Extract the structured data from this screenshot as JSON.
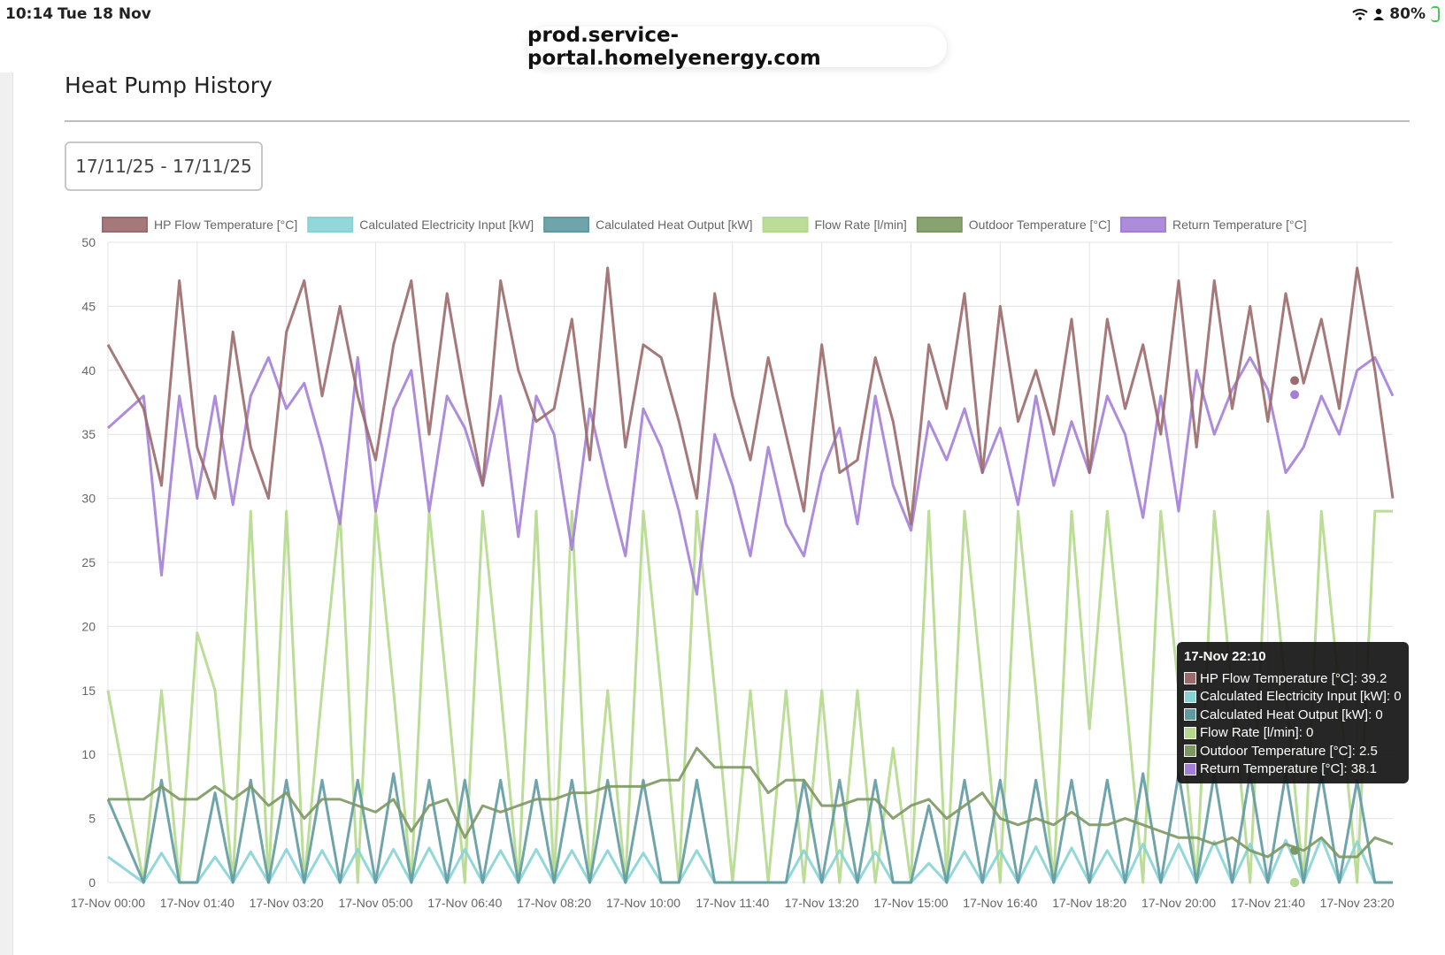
{
  "status_bar": {
    "time": "10:14",
    "date": "Tue 18 Nov",
    "battery": "80%"
  },
  "url": "prod.service-portal.homelyenergy.com",
  "page": {
    "title": "Heat Pump History",
    "date_range": "17/11/25 - 17/11/25"
  },
  "chart_data": {
    "type": "line",
    "title": "",
    "xlabel": "",
    "ylabel": "",
    "ylim": [
      0,
      50
    ],
    "yticks": [
      0,
      5,
      10,
      15,
      20,
      25,
      30,
      35,
      40,
      45,
      50
    ],
    "grid": true,
    "legend_position": "top",
    "x_tick_labels": [
      "17-Nov 00:00",
      "17-Nov 01:40",
      "17-Nov 03:20",
      "17-Nov 05:00",
      "17-Nov 06:40",
      "17-Nov 08:20",
      "17-Nov 10:00",
      "17-Nov 11:40",
      "17-Nov 13:20",
      "17-Nov 15:00",
      "17-Nov 16:40",
      "17-Nov 18:20",
      "17-Nov 20:00",
      "17-Nov 21:40",
      "17-Nov 23:20"
    ],
    "x_minutes": [
      0,
      40,
      60,
      80,
      100,
      120,
      140,
      160,
      180,
      200,
      220,
      240,
      260,
      280,
      300,
      320,
      340,
      360,
      380,
      400,
      420,
      440,
      460,
      480,
      500,
      520,
      540,
      560,
      580,
      600,
      620,
      640,
      660,
      680,
      700,
      720,
      740,
      760,
      780,
      800,
      820,
      840,
      860,
      880,
      900,
      920,
      940,
      960,
      980,
      1000,
      1020,
      1040,
      1060,
      1080,
      1100,
      1120,
      1140,
      1160,
      1180,
      1200,
      1220,
      1240,
      1260,
      1280,
      1300,
      1320,
      1340,
      1360,
      1380,
      1400,
      1420,
      1440
    ],
    "series": [
      {
        "name": "HP Flow Temperature [°C]",
        "color": "#9b6a6c",
        "values": [
          42,
          37,
          31,
          47,
          34,
          30,
          43,
          34,
          30,
          43,
          47,
          38,
          45,
          38,
          33,
          42,
          47,
          35,
          46,
          38,
          31,
          47,
          40,
          36,
          37,
          44,
          33,
          48,
          34,
          42,
          41,
          36,
          30,
          46,
          38,
          33,
          41,
          35,
          29,
          42,
          32,
          33,
          41,
          36,
          28,
          42,
          37,
          46,
          32,
          45,
          36,
          40,
          35,
          44,
          32,
          44,
          37,
          42,
          35,
          47,
          34,
          47,
          37,
          45,
          36,
          46,
          39,
          44,
          37,
          48,
          40,
          30
        ],
        "tooltip_value": "39.2"
      },
      {
        "name": "Calculated Electricity Input [kW]",
        "color": "#86d3d6",
        "values": [
          2,
          0,
          2.3,
          0,
          0,
          2,
          0,
          2.4,
          0,
          2.6,
          0,
          2.5,
          0,
          2.6,
          0,
          2.6,
          0,
          2.7,
          0,
          2.6,
          0,
          2.5,
          0,
          2.6,
          0,
          2.5,
          0,
          2.5,
          0,
          2.3,
          0,
          0,
          2.5,
          0,
          0,
          0,
          0,
          0,
          2.5,
          0,
          2.5,
          0,
          2.4,
          0,
          0,
          1.5,
          0,
          2.4,
          0,
          2.5,
          0,
          2.8,
          0,
          2.7,
          0,
          2.5,
          0,
          3,
          0,
          3,
          0,
          3.2,
          0,
          3,
          0,
          3.3,
          0,
          3.5,
          0,
          3.2,
          0,
          0
        ],
        "tooltip_value": "0"
      },
      {
        "name": "Calculated Heat Output [kW]",
        "color": "#5f9aa1",
        "values": [
          6.5,
          0,
          8,
          0,
          0,
          7,
          0,
          8,
          0,
          8,
          0,
          8,
          0,
          8,
          0,
          8.5,
          0,
          8,
          0,
          8,
          0,
          8,
          0,
          8,
          0,
          8,
          0,
          8,
          0,
          8,
          0,
          0,
          8,
          0,
          0,
          0,
          0,
          0,
          8,
          0,
          8,
          0,
          8,
          0,
          0,
          6,
          0,
          8,
          0,
          8,
          0,
          8,
          0,
          8,
          0,
          8,
          0,
          8.5,
          0,
          8.5,
          0,
          8.5,
          0,
          8.5,
          0,
          8.5,
          0,
          8.5,
          0,
          8,
          0,
          0
        ],
        "tooltip_value": "0"
      },
      {
        "name": "Flow Rate [l/min]",
        "color": "#b5d98c",
        "values": [
          15,
          0,
          15,
          0,
          19.5,
          15,
          0,
          29,
          0,
          29,
          0,
          15,
          29,
          0,
          29,
          15,
          0,
          29,
          15,
          0,
          29,
          15,
          0,
          29,
          0,
          29,
          0,
          15,
          0,
          29,
          15,
          0,
          29,
          15,
          0,
          15,
          0,
          15,
          0,
          15,
          0,
          15,
          0,
          10.5,
          0,
          29,
          0,
          29,
          15,
          0,
          29,
          15,
          0,
          29,
          12,
          29,
          15,
          0,
          29,
          15,
          0,
          29,
          15,
          0,
          29,
          15,
          0,
          29,
          15,
          0,
          29,
          29
        ],
        "tooltip_value": "0"
      },
      {
        "name": "Outdoor Temperature [°C]",
        "color": "#7c9862",
        "values": [
          6.5,
          6.5,
          7.5,
          6.5,
          6.5,
          7.5,
          6.5,
          7.5,
          6,
          7,
          5,
          6.5,
          6.5,
          6,
          5.5,
          6.5,
          4,
          6,
          6.5,
          3.5,
          6,
          5.5,
          6,
          6.5,
          6.5,
          7,
          7,
          7.5,
          7.5,
          7.5,
          8,
          8,
          10.5,
          9,
          9,
          9,
          7,
          8,
          8,
          6,
          6,
          6.5,
          6.5,
          5,
          6,
          6.5,
          5,
          6,
          7,
          5,
          4.5,
          5,
          4.5,
          5.5,
          4.5,
          4.5,
          5,
          4.5,
          4,
          3.5,
          3.5,
          3,
          3.5,
          2.5,
          2,
          3,
          2.5,
          3.5,
          2,
          2,
          3.5,
          3
        ],
        "tooltip_value": "2.5"
      },
      {
        "name": "Return Temperature [°C]",
        "color": "#a47fd8",
        "values": [
          35.5,
          38,
          24,
          38,
          30,
          38,
          29.5,
          38,
          41,
          37,
          39,
          34,
          28,
          41,
          29,
          37,
          40,
          29,
          38,
          35.5,
          31,
          38,
          27,
          38,
          35,
          26,
          37,
          31,
          25.5,
          37,
          34,
          29,
          22.5,
          35,
          31,
          25.5,
          34,
          28,
          25.5,
          32,
          35.5,
          28,
          38,
          31,
          27.5,
          36,
          33,
          37,
          32,
          35.5,
          29.5,
          38,
          31,
          36,
          32,
          38,
          35,
          28.5,
          38,
          29,
          40,
          35,
          38.5,
          41,
          38.5,
          32,
          34,
          38,
          35,
          40,
          41,
          38
        ],
        "tooltip_value": "38.1"
      }
    ],
    "tooltip": {
      "time": "17-Nov 22:10",
      "rows": [
        "HP Flow Temperature [°C]: 39.2",
        "Calculated Electricity Input [kW]: 0",
        "Calculated Heat Output [kW]: 0",
        "Flow Rate [l/min]: 0",
        "Outdoor Temperature [°C]: 2.5",
        "Return Temperature [°C]: 38.1"
      ]
    }
  }
}
